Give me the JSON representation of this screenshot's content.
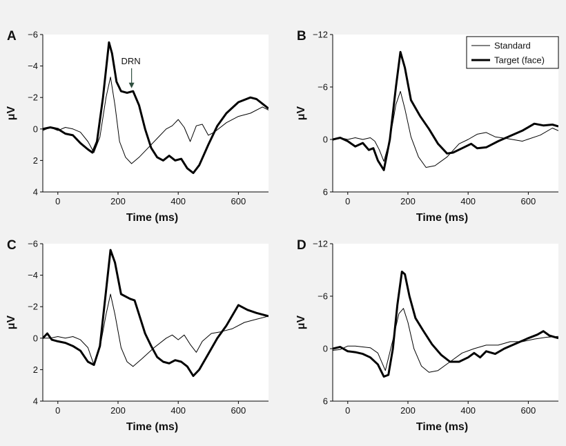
{
  "figure": {
    "legend": {
      "entries": [
        {
          "name": "Standard",
          "style": "thin"
        },
        {
          "name": "Target (face)",
          "style": "thick"
        }
      ]
    }
  },
  "colors": {
    "background": "#f2f2f2",
    "plot_bg": "#ffffff",
    "line": "#000000"
  },
  "chart_data": [
    {
      "type": "line",
      "panel": "A",
      "xlabel": "Time (ms)",
      "ylabel": "μV",
      "xlim": [
        -50,
        700
      ],
      "ylim": [
        4,
        -6
      ],
      "xticks": [
        0,
        200,
        400,
        600
      ],
      "yticks": [
        -6,
        -4,
        -2,
        0,
        2,
        4
      ],
      "ytick_labels": [
        "−6",
        "−4",
        "−2",
        "0",
        "2",
        "4"
      ],
      "annotations": [
        {
          "text": "DRN",
          "x": 245,
          "y": -2.5
        }
      ],
      "series": [
        {
          "name": "Standard",
          "style": "thin",
          "x": [
            -50,
            -25,
            0,
            25,
            50,
            75,
            100,
            120,
            140,
            160,
            175,
            190,
            205,
            225,
            245,
            270,
            300,
            330,
            360,
            380,
            400,
            420,
            440,
            460,
            480,
            500,
            520,
            560,
            600,
            640,
            680,
            700
          ],
          "y": [
            0.1,
            -0.1,
            0.1,
            -0.1,
            0,
            0.2,
            0.8,
            1.5,
            0.5,
            -2,
            -3.3,
            -1.5,
            0.8,
            1.8,
            2.2,
            1.8,
            1.2,
            0.6,
            0,
            -0.2,
            -0.6,
            -0.1,
            0.8,
            -0.2,
            -0.3,
            0.4,
            0.2,
            -0.4,
            -0.8,
            -1,
            -1.4,
            -1.2
          ]
        },
        {
          "name": "Target (face)",
          "style": "thick",
          "x": [
            -50,
            -25,
            0,
            25,
            50,
            75,
            100,
            115,
            130,
            150,
            170,
            180,
            195,
            210,
            230,
            250,
            270,
            290,
            310,
            330,
            350,
            370,
            390,
            410,
            430,
            450,
            470,
            500,
            530,
            560,
            600,
            640,
            660,
            680,
            700
          ],
          "y": [
            0,
            -0.1,
            0,
            0.3,
            0.4,
            0.9,
            1.3,
            1.5,
            0.8,
            -2,
            -5.5,
            -4.8,
            -3,
            -2.4,
            -2.3,
            -2.4,
            -1.5,
            0,
            1.2,
            1.8,
            2,
            1.7,
            2,
            1.9,
            2.5,
            2.8,
            2.3,
            1,
            -0.2,
            -1,
            -1.7,
            -2,
            -1.9,
            -1.6,
            -1.3
          ]
        }
      ]
    },
    {
      "type": "line",
      "panel": "B",
      "xlabel": "Time (ms)",
      "ylabel": "μV",
      "xlim": [
        -50,
        700
      ],
      "ylim": [
        6,
        -12
      ],
      "xticks": [
        0,
        200,
        400,
        600
      ],
      "yticks": [
        -12,
        -6,
        0,
        6
      ],
      "ytick_labels": [
        "−12",
        "−6",
        "0",
        "6"
      ],
      "series": [
        {
          "name": "Standard",
          "style": "thin",
          "x": [
            -50,
            -25,
            0,
            25,
            50,
            75,
            90,
            105,
            120,
            140,
            160,
            175,
            190,
            210,
            235,
            260,
            290,
            330,
            370,
            400,
            430,
            460,
            490,
            530,
            580,
            640,
            680,
            700
          ],
          "y": [
            0.1,
            -0.2,
            0,
            -0.2,
            0,
            -0.2,
            0.2,
            1.2,
            2.5,
            0,
            -4,
            -5.5,
            -3.5,
            -0.3,
            2,
            3.2,
            3,
            2,
            0.5,
            0,
            -0.6,
            -0.8,
            -0.3,
            -0.1,
            0.2,
            -0.5,
            -1.3,
            -1
          ]
        },
        {
          "name": "Target (face)",
          "style": "thick",
          "x": [
            -50,
            -25,
            0,
            25,
            50,
            70,
            85,
            100,
            120,
            140,
            160,
            175,
            190,
            210,
            240,
            270,
            300,
            330,
            350,
            380,
            410,
            430,
            460,
            500,
            540,
            580,
            620,
            650,
            680,
            700
          ],
          "y": [
            0,
            -0.2,
            0.2,
            0.8,
            0.4,
            1.2,
            1,
            2.4,
            3.5,
            0,
            -6,
            -10,
            -8.2,
            -4.5,
            -2.7,
            -1.2,
            0.5,
            1.6,
            1.5,
            1,
            0.5,
            1,
            0.9,
            0.2,
            -0.4,
            -1,
            -1.8,
            -1.6,
            -1.7,
            -1.5
          ]
        }
      ]
    },
    {
      "type": "line",
      "panel": "C",
      "xlabel": "Time (ms)",
      "ylabel": "μV",
      "xlim": [
        -50,
        700
      ],
      "ylim": [
        4,
        -6
      ],
      "xticks": [
        0,
        200,
        400,
        600
      ],
      "yticks": [
        -6,
        -4,
        -2,
        0,
        2,
        4
      ],
      "ytick_labels": [
        "−6",
        "−4",
        "−2",
        "0",
        "2",
        "4"
      ],
      "series": [
        {
          "name": "Standard",
          "style": "thin",
          "x": [
            -50,
            -25,
            0,
            25,
            50,
            75,
            100,
            120,
            140,
            160,
            175,
            190,
            210,
            230,
            250,
            280,
            320,
            360,
            380,
            400,
            420,
            440,
            460,
            480,
            510,
            540,
            580,
            620,
            660,
            700
          ],
          "y": [
            0,
            0,
            -0.1,
            0,
            -0.1,
            0.1,
            0.6,
            1.7,
            0.6,
            -1.5,
            -2.8,
            -1.5,
            0.6,
            1.5,
            1.8,
            1.3,
            0.6,
            0,
            -0.2,
            0.1,
            -0.2,
            0.4,
            0.9,
            0.2,
            -0.3,
            -0.4,
            -0.6,
            -1,
            -1.2,
            -1.4
          ]
        },
        {
          "name": "Target (face)",
          "style": "thick",
          "x": [
            -50,
            -35,
            -20,
            0,
            25,
            50,
            75,
            100,
            120,
            140,
            160,
            175,
            190,
            210,
            240,
            255,
            270,
            290,
            310,
            330,
            350,
            370,
            390,
            410,
            430,
            450,
            470,
            500,
            530,
            560,
            600,
            630,
            660,
            700
          ],
          "y": [
            0,
            -0.3,
            0.1,
            0.2,
            0.3,
            0.5,
            0.8,
            1.5,
            1.7,
            0.5,
            -3,
            -5.6,
            -4.8,
            -2.8,
            -2.5,
            -2.4,
            -1.5,
            -0.3,
            0.5,
            1.2,
            1.5,
            1.6,
            1.4,
            1.5,
            1.8,
            2.4,
            2,
            1,
            0,
            -0.8,
            -2.1,
            -1.8,
            -1.6,
            -1.4
          ]
        }
      ]
    },
    {
      "type": "line",
      "panel": "D",
      "xlabel": "Time (ms)",
      "ylabel": "μV",
      "xlim": [
        -50,
        700
      ],
      "ylim": [
        6,
        -12
      ],
      "xticks": [
        0,
        200,
        400,
        600
      ],
      "yticks": [
        -12,
        -6,
        0,
        6
      ],
      "ytick_labels": [
        "−12",
        "−6",
        "0",
        "6"
      ],
      "series": [
        {
          "name": "Standard",
          "style": "thin",
          "x": [
            -50,
            -25,
            0,
            25,
            50,
            75,
            100,
            125,
            150,
            170,
            185,
            200,
            220,
            245,
            270,
            300,
            340,
            380,
            420,
            460,
            500,
            540,
            580,
            620,
            660,
            700
          ],
          "y": [
            0.2,
            0.1,
            -0.3,
            -0.3,
            -0.2,
            -0.1,
            0.5,
            2.5,
            -1,
            -4,
            -4.6,
            -3,
            0,
            2,
            2.7,
            2.5,
            1.5,
            0.5,
            0,
            -0.4,
            -0.4,
            -0.8,
            -0.8,
            -1.1,
            -1.3,
            -1.4
          ]
        },
        {
          "name": "Target (face)",
          "style": "thick",
          "x": [
            -50,
            -25,
            0,
            25,
            50,
            75,
            100,
            120,
            135,
            150,
            165,
            180,
            190,
            205,
            225,
            250,
            280,
            310,
            340,
            370,
            400,
            420,
            440,
            460,
            490,
            520,
            560,
            600,
            630,
            650,
            670,
            700
          ],
          "y": [
            0,
            -0.2,
            0.3,
            0.4,
            0.6,
            1,
            1.8,
            3.2,
            3,
            0,
            -5,
            -8.8,
            -8.5,
            -6,
            -3.5,
            -2.1,
            -0.5,
            0.7,
            1.5,
            1.5,
            1,
            0.5,
            1,
            0.3,
            0.6,
            0,
            -0.6,
            -1.2,
            -1.6,
            -2,
            -1.5,
            -1.2
          ]
        }
      ]
    }
  ]
}
